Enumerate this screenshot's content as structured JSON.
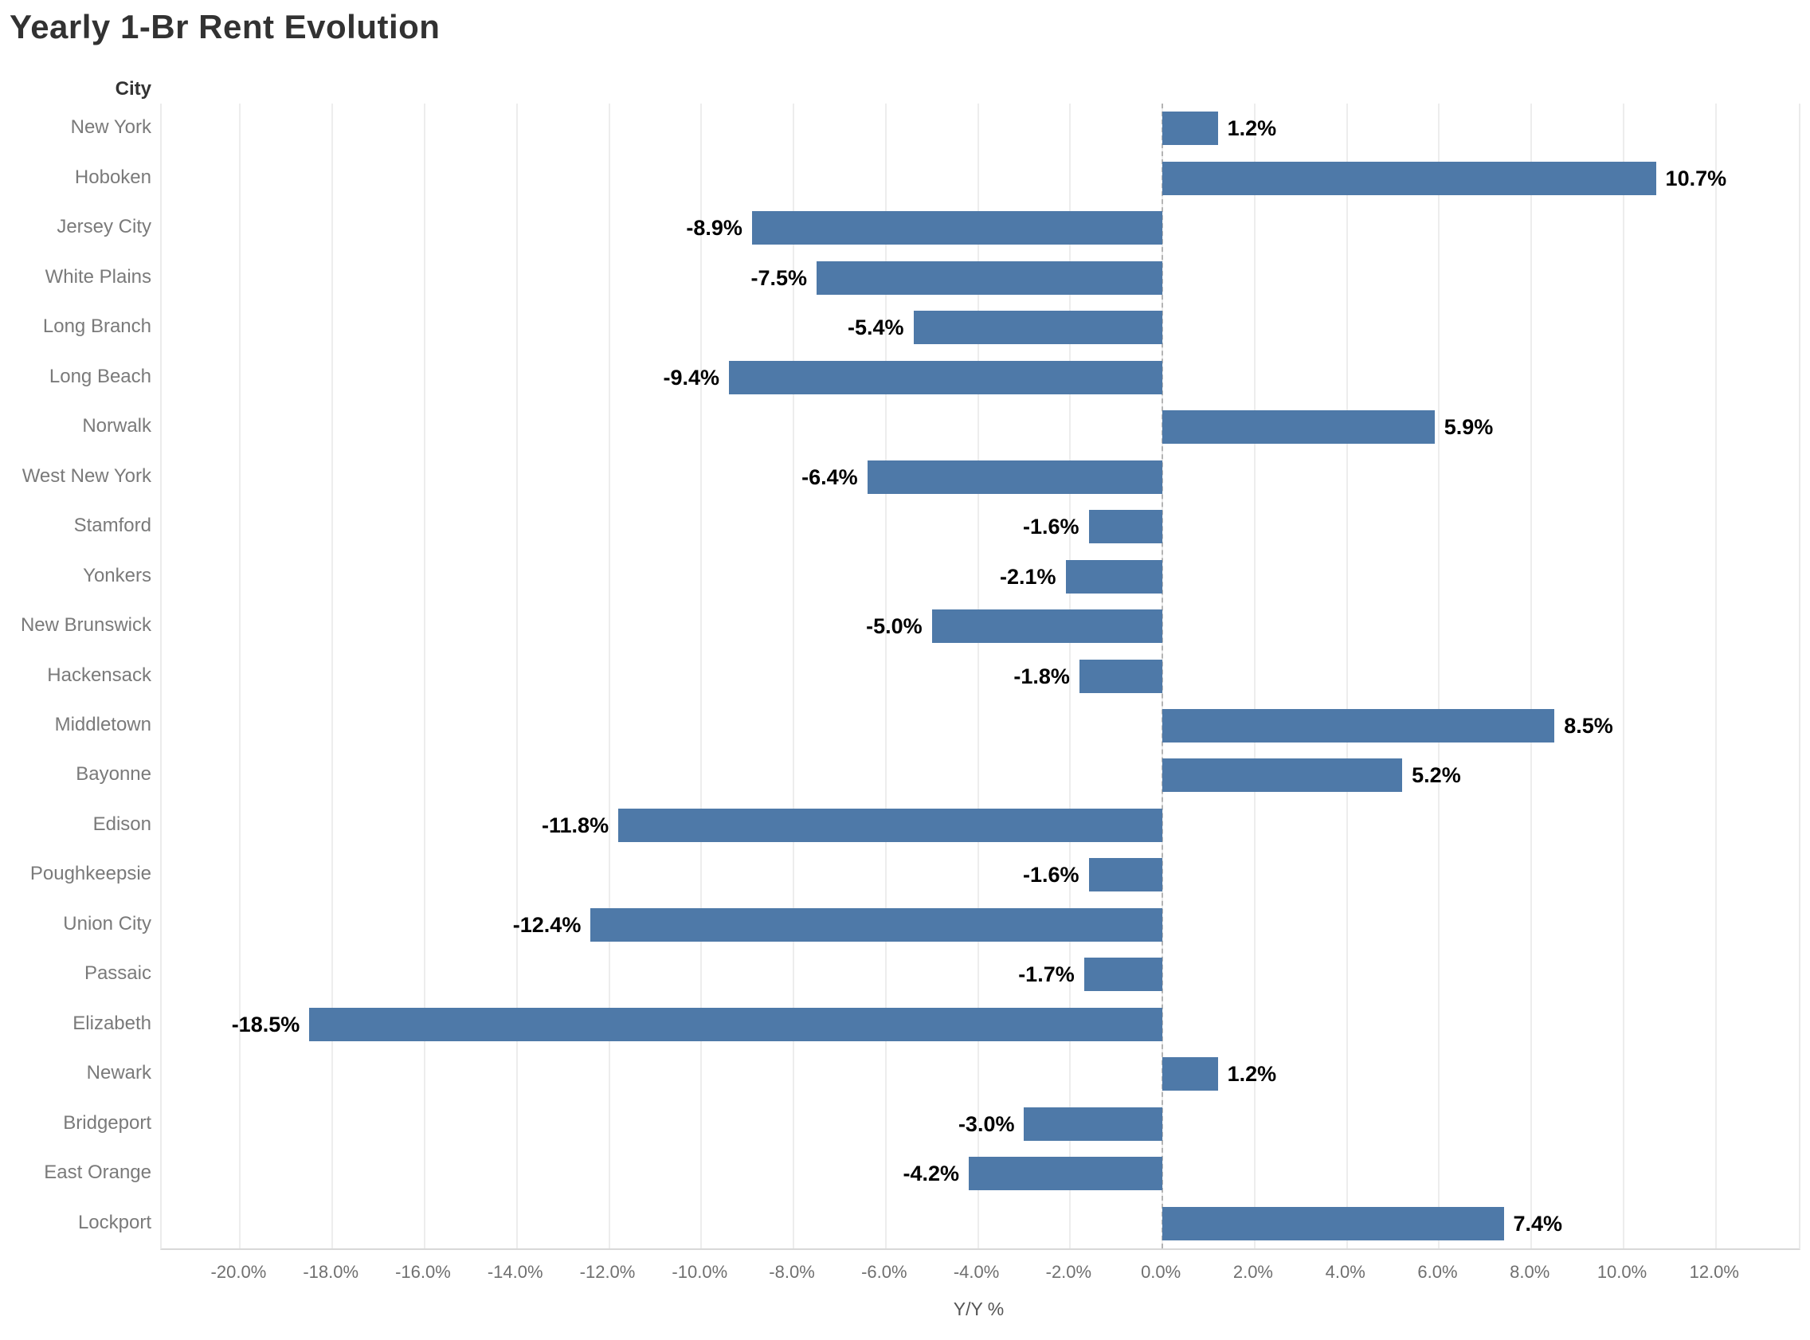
{
  "title": "Yearly 1-Br Rent Evolution",
  "chart_data": {
    "type": "bar",
    "orientation": "horizontal",
    "title": "Yearly 1-Br Rent Evolution",
    "ylabel": "City",
    "xlabel": "Y/Y %",
    "categories": [
      "New York",
      "Hoboken",
      "Jersey City",
      "White Plains",
      "Long Branch",
      "Long Beach",
      "Norwalk",
      "West New York",
      "Stamford",
      "Yonkers",
      "New Brunswick",
      "Hackensack",
      "Middletown",
      "Bayonne",
      "Edison",
      "Poughkeepsie",
      "Union City",
      "Passaic",
      "Elizabeth",
      "Newark",
      "Bridgeport",
      "East Orange",
      "Lockport"
    ],
    "values": [
      1.2,
      10.7,
      -8.9,
      -7.5,
      -5.4,
      -9.4,
      5.9,
      -6.4,
      -1.6,
      -2.1,
      -5.0,
      -1.8,
      8.5,
      5.2,
      -11.8,
      -1.6,
      -12.4,
      -1.7,
      -18.5,
      1.2,
      -3.0,
      -4.2,
      7.4
    ],
    "bar_labels": [
      "1.2%",
      "10.7%",
      "-8.9%",
      "-7.5%",
      "-5.4%",
      "-9.4%",
      "5.9%",
      "-6.4%",
      "-1.6%",
      "-2.1%",
      "-5.0%",
      "-1.8%",
      "8.5%",
      "5.2%",
      "-11.8%",
      "-1.6%",
      "-12.4%",
      "-1.7%",
      "-18.5%",
      "1.2%",
      "-3.0%",
      "-4.2%",
      "7.4%"
    ],
    "xlim": [
      -21.7,
      13.8
    ],
    "xticks": [
      -20,
      -18,
      -16,
      -14,
      -12,
      -10,
      -8,
      -6,
      -4,
      -2,
      0,
      2,
      4,
      6,
      8,
      10,
      12
    ],
    "xtick_labels": [
      "-20.0%",
      "-18.0%",
      "-16.0%",
      "-14.0%",
      "-12.0%",
      "-10.0%",
      "-8.0%",
      "-6.0%",
      "-4.0%",
      "-2.0%",
      "0.0%",
      "2.0%",
      "4.0%",
      "6.0%",
      "8.0%",
      "10.0%",
      "12.0%"
    ],
    "grid": true,
    "legend": "none",
    "zero_line_style": "dashed",
    "bar_color": "#4e79a8",
    "gridline_color": "#ededed",
    "zero_line_color": "#b4b4b4"
  }
}
